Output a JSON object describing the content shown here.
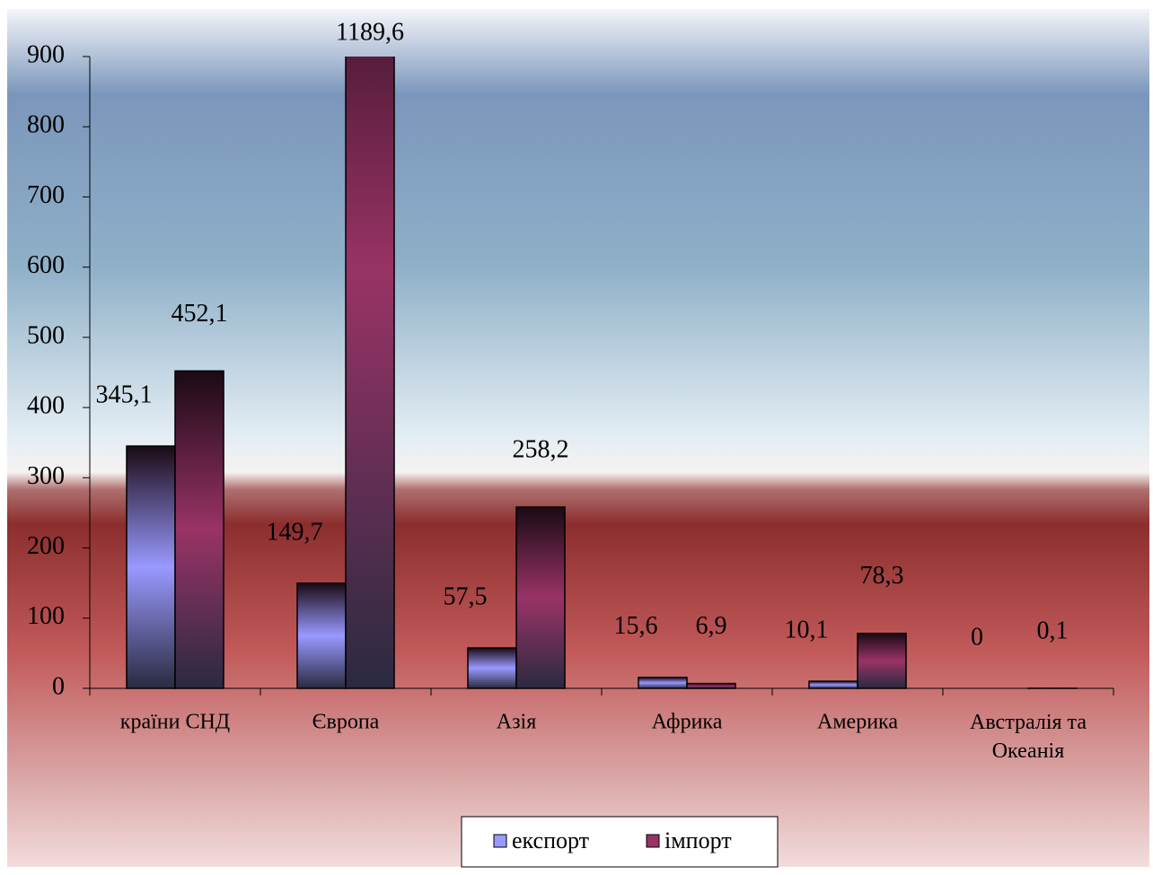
{
  "chart_data": {
    "type": "bar",
    "categories": [
      "країни СНД",
      "Європа",
      "Азія",
      "Африка",
      "Америка",
      "Австралія та Океанія"
    ],
    "series": [
      {
        "name": "експорт",
        "color": "#9999ff",
        "values": [
          345.1,
          149.7,
          57.5,
          15.6,
          10.1,
          0
        ],
        "value_labels": [
          "345,1",
          "149,7",
          "57,5",
          "15,6",
          "10,1",
          "0"
        ]
      },
      {
        "name": "імпорт",
        "color": "#993366",
        "values": [
          452.1,
          1189.6,
          258.2,
          6.9,
          78.3,
          0.1
        ],
        "value_labels": [
          "452,1",
          "1189,6",
          "258,2",
          "6,9",
          "78,3",
          "0,1"
        ]
      }
    ],
    "ylim": [
      0,
      900
    ],
    "yticks": [
      0,
      100,
      200,
      300,
      400,
      500,
      600,
      700,
      800,
      900
    ],
    "legend": "bottom"
  }
}
